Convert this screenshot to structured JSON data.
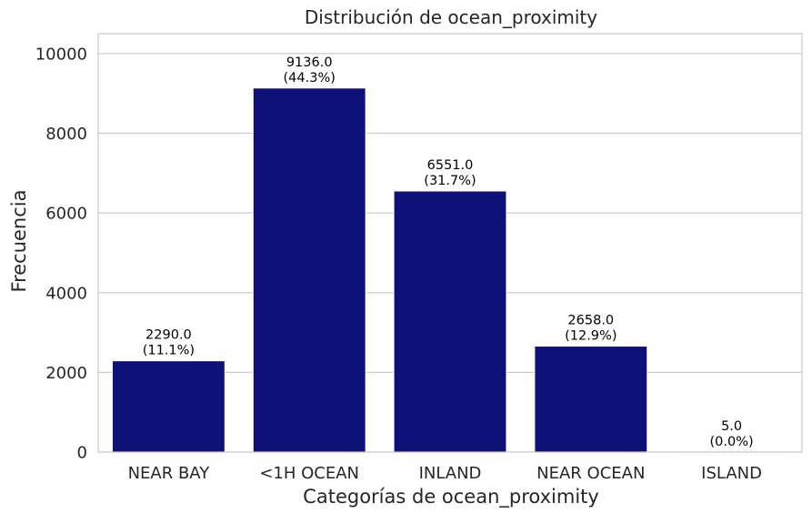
{
  "chart_data": {
    "type": "bar",
    "title": "Distribución de ocean_proximity",
    "xlabel": "Categorías de ocean_proximity",
    "ylabel": "Frecuencia",
    "categories": [
      "NEAR BAY",
      "<1H OCEAN",
      "INLAND",
      "NEAR OCEAN",
      "ISLAND"
    ],
    "values": [
      2290,
      9136,
      6551,
      2658,
      5
    ],
    "value_labels": [
      "2290.0",
      "9136.0",
      "6551.0",
      "2658.0",
      "5.0"
    ],
    "percent_labels": [
      "(11.1%)",
      "(44.3%)",
      "(31.7%)",
      "(12.9%)",
      "(0.0%)"
    ],
    "ylim": [
      0,
      10500
    ],
    "yticks": [
      0,
      2000,
      4000,
      6000,
      8000,
      10000
    ],
    "ytick_labels": [
      "0",
      "2000",
      "4000",
      "6000",
      "8000",
      "10000"
    ],
    "grid": true,
    "bar_color": "#0e1177",
    "grid_color": "#cccccc",
    "frame_color": "#cccccc"
  }
}
